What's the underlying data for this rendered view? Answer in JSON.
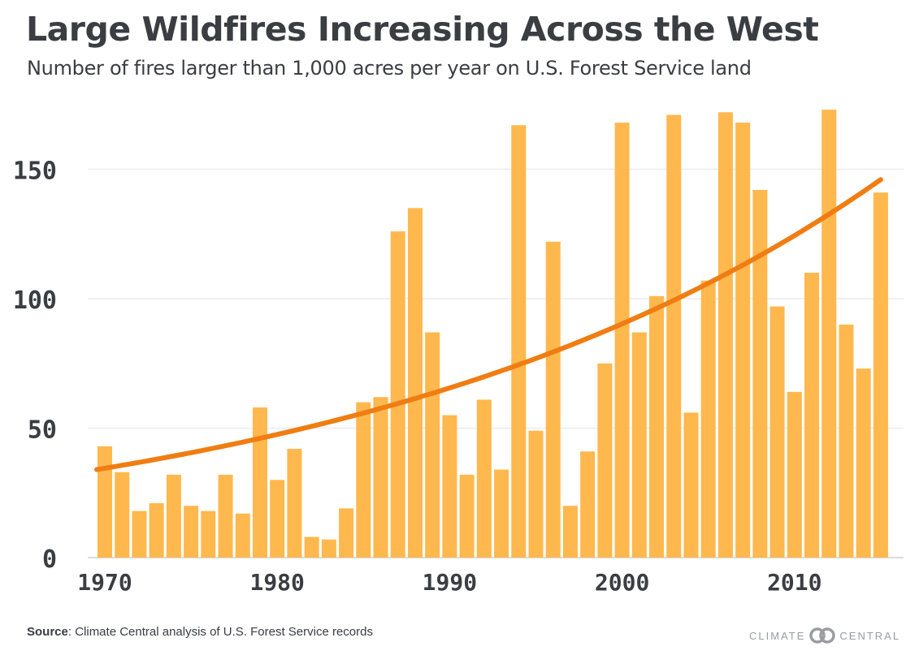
{
  "chart_data": {
    "type": "bar",
    "title": "Large Wildfires Increasing Across the West",
    "subtitle": "Number of fires larger than 1,000 acres per year on U.S. Forest Service land",
    "x": [
      1970,
      1971,
      1972,
      1973,
      1974,
      1975,
      1976,
      1977,
      1978,
      1979,
      1980,
      1981,
      1982,
      1983,
      1984,
      1985,
      1986,
      1987,
      1988,
      1989,
      1990,
      1991,
      1992,
      1993,
      1994,
      1995,
      1996,
      1997,
      1998,
      1999,
      2000,
      2001,
      2002,
      2003,
      2004,
      2005,
      2006,
      2007,
      2008,
      2009,
      2010,
      2011,
      2012,
      2013,
      2014,
      2015
    ],
    "values": [
      43,
      33,
      18,
      21,
      32,
      20,
      18,
      32,
      17,
      58,
      30,
      42,
      8,
      7,
      19,
      60,
      62,
      126,
      135,
      87,
      55,
      32,
      61,
      34,
      167,
      49,
      122,
      20,
      41,
      75,
      168,
      87,
      101,
      171,
      56,
      107,
      172,
      168,
      142,
      97,
      64,
      110,
      173,
      90,
      73,
      141
    ],
    "trend": {
      "color": "#f07d12",
      "start": 34,
      "end": 146
    },
    "bar_color": "#ffb84d",
    "xticks": [
      1970,
      1980,
      1990,
      2000,
      2010
    ],
    "yticks": [
      0,
      50,
      100,
      150
    ],
    "ylim": [
      0,
      175
    ],
    "xlabel": "",
    "ylabel": "",
    "grid": true,
    "legend": "none"
  },
  "source": {
    "label": "Source",
    "text": ": Climate Central analysis of U.S. Forest Service records"
  },
  "logo": {
    "left": "CLIMATE",
    "right": "CENTRAL",
    "icon": "climate-central-rings-icon"
  }
}
